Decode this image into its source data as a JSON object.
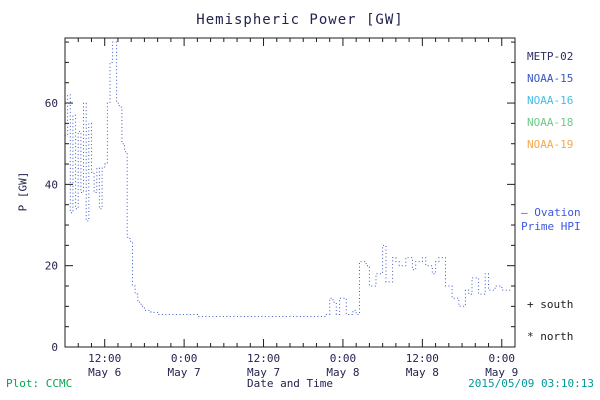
{
  "title": "Hemispheric Power [GW]",
  "ylabel": "P [GW]",
  "xlabel": "Date and Time",
  "footer": {
    "left": "Plot: CCMC",
    "left_color": "#00a550",
    "right": "2015/05/09 03:10:13",
    "right_color": "#00999b"
  },
  "legend": {
    "satellites": [
      {
        "label": "METP-02",
        "color": "#2e2e60"
      },
      {
        "label": "NOAA-15",
        "color": "#3a57c4"
      },
      {
        "label": "NOAA-16",
        "color": "#45bde8"
      },
      {
        "label": "NOAA-18",
        "color": "#6cc98a"
      },
      {
        "label": "NOAA-19",
        "color": "#f5a84b"
      }
    ],
    "ovation": {
      "line1": "— Ovation",
      "line2": "Prime HPI",
      "color": "#3a57e0"
    },
    "markers": [
      {
        "symbol": "+",
        "label": "south"
      },
      {
        "symbol": "*",
        "label": "north"
      }
    ]
  },
  "chart_data": {
    "type": "line",
    "name": "Ovation Prime HPI",
    "line_style": "dotted-step",
    "line_color": "#3a57c4",
    "axis_color": "#1c1c1c",
    "tick_text_color": "#23234f",
    "title": "Hemispheric Power [GW]",
    "xlabel": "Date and Time",
    "ylabel": "P [GW]",
    "ylim": [
      0,
      76
    ],
    "y_ticks": [
      0,
      20,
      40,
      60
    ],
    "x_domain_hours": [
      6,
      74
    ],
    "x_ticks": [
      {
        "h": 12,
        "label": "12:00",
        "date": "May 6"
      },
      {
        "h": 24,
        "label": "0:00",
        "date": "May 7"
      },
      {
        "h": 36,
        "label": "12:00",
        "date": "May 7"
      },
      {
        "h": 48,
        "label": "0:00",
        "date": "May 8"
      },
      {
        "h": 60,
        "label": "12:00",
        "date": "May 8"
      },
      {
        "h": 72,
        "label": "0:00",
        "date": "May 9"
      }
    ],
    "x_hours_since_may6_0000": [
      6.0,
      6.4,
      6.8,
      7.2,
      7.6,
      8.0,
      8.4,
      8.8,
      9.2,
      9.6,
      10.0,
      10.4,
      10.8,
      11.2,
      11.6,
      12.0,
      12.4,
      12.8,
      13.2,
      13.8,
      14.2,
      14.6,
      15.0,
      15.4,
      15.8,
      16.2,
      16.6,
      17.0,
      17.5,
      18.0,
      18.5,
      19.0,
      20.0,
      21.0,
      22.0,
      23.0,
      24.0,
      26.0,
      28.0,
      30.0,
      32.0,
      34.0,
      36.0,
      38.0,
      40.0,
      42.0,
      44.0,
      45.5,
      46.0,
      46.5,
      47.0,
      47.5,
      48.0,
      48.5,
      49.0,
      49.5,
      50.0,
      50.5,
      51.0,
      51.5,
      52.0,
      52.5,
      53.0,
      53.5,
      54.0,
      54.5,
      55.0,
      55.5,
      56.0,
      56.5,
      57.0,
      57.5,
      58.0,
      58.5,
      59.0,
      59.5,
      60.0,
      60.5,
      61.0,
      61.5,
      62.0,
      62.5,
      63.0,
      63.5,
      64.0,
      64.5,
      65.0,
      65.5,
      66.0,
      66.5,
      67.0,
      67.5,
      68.0,
      68.5,
      69.0,
      69.5,
      70.0,
      70.5,
      71.0,
      72.0,
      73.5
    ],
    "y_gw": [
      52,
      62,
      33,
      57,
      34,
      53,
      38,
      60,
      31,
      55,
      43,
      38,
      44,
      34,
      44,
      45,
      60,
      70,
      75,
      60,
      59,
      50,
      48,
      27,
      26,
      15,
      13,
      11,
      10,
      9,
      9,
      8.5,
      8,
      8,
      8,
      8,
      8,
      7.5,
      7.5,
      7.5,
      7.5,
      7.5,
      7.5,
      7.5,
      7.5,
      7.5,
      7.5,
      8,
      12,
      11,
      8,
      12,
      12,
      8,
      8,
      9,
      8,
      21,
      21,
      20,
      15,
      15,
      18,
      18,
      25,
      16,
      16,
      22,
      21,
      20,
      20,
      22,
      22,
      19,
      21,
      21,
      22,
      20,
      20,
      18,
      21,
      22,
      22,
      15,
      15,
      12,
      12,
      10,
      10,
      14,
      13,
      17,
      17,
      13,
      13,
      18,
      14,
      14,
      15,
      14,
      14
    ]
  }
}
